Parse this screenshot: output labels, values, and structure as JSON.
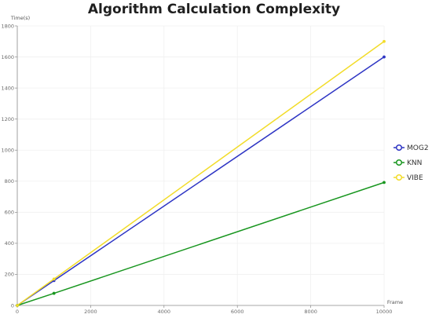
{
  "chart_data": {
    "type": "line",
    "title": "Algorithm Calculation Complexity",
    "xlabel": "Frame",
    "ylabel": "Time(s)",
    "x": [
      0,
      1000,
      10000
    ],
    "xlim": [
      0,
      10000
    ],
    "ylim": [
      0,
      1800
    ],
    "xticks": [
      0,
      2000,
      4000,
      6000,
      8000,
      10000
    ],
    "yticks": [
      0,
      200,
      400,
      600,
      800,
      1000,
      1200,
      1400,
      1600,
      1800
    ],
    "grid": true,
    "legend_position": "right",
    "series": [
      {
        "name": "MOG2",
        "color": "#2e35c4",
        "values": [
          0,
          160,
          1600
        ]
      },
      {
        "name": "KNN",
        "color": "#18961f",
        "values": [
          0,
          78,
          792
        ]
      },
      {
        "name": "VIBE",
        "color": "#f2dc2a",
        "values": [
          0,
          170,
          1700
        ]
      }
    ]
  }
}
